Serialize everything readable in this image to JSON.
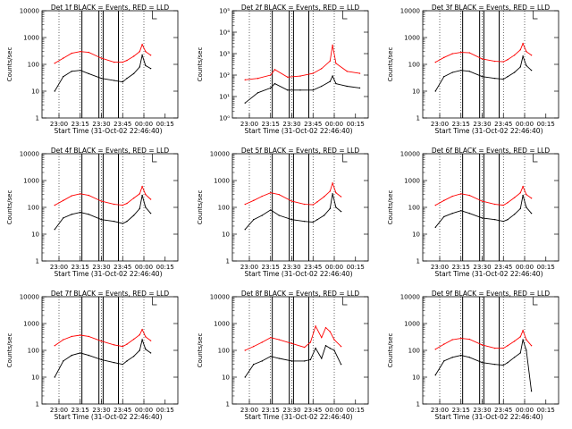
{
  "page": {
    "background": "#ffffff",
    "series_colors": {
      "events": "#000000",
      "lld": "#ff0000"
    }
  },
  "chart_data": [
    {
      "type": "line",
      "log_y": true,
      "title": "Det 1f BLACK = Events, RED = LLD",
      "xlabel": "Start Time (31-Oct-02 22:46:40)",
      "ylabel": "Counts/sec",
      "x_ticks": [
        "23:00",
        "23:15",
        "23:30",
        "23:45",
        "00:00",
        "00:15"
      ],
      "y_ticks": [
        "1",
        "10",
        "100",
        "1000",
        "10000"
      ],
      "x": [
        22.95,
        23.05,
        23.15,
        23.25,
        23.35,
        23.5,
        23.65,
        23.75,
        23.8,
        23.88,
        23.95,
        23.98,
        24.02,
        24.08
      ],
      "series": [
        {
          "values": [
            10,
            35,
            55,
            60,
            45,
            30,
            25,
            22,
            30,
            45,
            80,
            220,
            90,
            70
          ]
        },
        {
          "values": [
            110,
            170,
            260,
            300,
            280,
            170,
            120,
            120,
            140,
            200,
            300,
            550,
            300,
            220
          ]
        }
      ]
    },
    {
      "type": "line",
      "log_y": true,
      "title": "Det 2f BLACK = Events, RED = LLD",
      "xlabel": "Start Time (31-Oct-02 22:46:40)",
      "ylabel": "Counts/sec",
      "x_ticks": [
        "23:00",
        "23:15",
        "23:30",
        "23:45",
        "00:00",
        "00:15"
      ],
      "y_ticks": [
        "10⁰",
        "10¹",
        "10²",
        "10³",
        "10⁴",
        "10⁵"
      ],
      "x": [
        22.95,
        23.1,
        23.25,
        23.3,
        23.45,
        23.6,
        23.75,
        23.85,
        23.95,
        23.98,
        24.02,
        24.15,
        24.3
      ],
      "series": [
        {
          "values": [
            5,
            15,
            25,
            40,
            20,
            20,
            20,
            30,
            50,
            90,
            40,
            30,
            25
          ]
        },
        {
          "values": [
            60,
            70,
            100,
            180,
            80,
            90,
            120,
            200,
            450,
            2500,
            350,
            150,
            120
          ]
        }
      ]
    },
    {
      "type": "line",
      "log_y": true,
      "title": "Det 3f BLACK = Events, RED = LLD",
      "xlabel": "Start Time (31-Oct-02 22:46:40)",
      "ylabel": "Counts/sec",
      "x_ticks": [
        "23:00",
        "23:15",
        "23:30",
        "23:45",
        "00:00",
        "00:15"
      ],
      "y_ticks": [
        "1",
        "10",
        "100",
        "1000",
        "10000"
      ],
      "x": [
        22.95,
        23.05,
        23.15,
        23.25,
        23.35,
        23.5,
        23.65,
        23.75,
        23.8,
        23.88,
        23.95,
        23.98,
        24.02,
        24.08
      ],
      "series": [
        {
          "values": [
            10,
            35,
            50,
            60,
            55,
            35,
            30,
            28,
            35,
            50,
            80,
            200,
            90,
            60
          ]
        },
        {
          "values": [
            120,
            180,
            250,
            280,
            270,
            160,
            130,
            125,
            150,
            220,
            350,
            600,
            300,
            220
          ]
        }
      ]
    },
    {
      "type": "line",
      "log_y": true,
      "title": "Det 4f BLACK = Events, RED = LLD",
      "xlabel": "Start Time (31-Oct-02 22:46:40)",
      "ylabel": "Counts/sec",
      "x_ticks": [
        "23:00",
        "23:15",
        "23:30",
        "23:45",
        "00:00",
        "00:15"
      ],
      "y_ticks": [
        "1",
        "10",
        "100",
        "1000",
        "10000"
      ],
      "x": [
        22.95,
        23.05,
        23.15,
        23.25,
        23.35,
        23.5,
        23.65,
        23.75,
        23.8,
        23.88,
        23.95,
        23.98,
        24.02,
        24.08
      ],
      "series": [
        {
          "values": [
            15,
            40,
            55,
            65,
            55,
            35,
            30,
            25,
            30,
            50,
            90,
            280,
            100,
            60
          ]
        },
        {
          "values": [
            120,
            180,
            270,
            320,
            280,
            170,
            130,
            120,
            140,
            220,
            320,
            600,
            300,
            200
          ]
        }
      ]
    },
    {
      "type": "line",
      "log_y": true,
      "title": "Det 5f BLACK = Events, RED = LLD",
      "xlabel": "Start Time (31-Oct-02 22:46:40)",
      "ylabel": "Counts/sec",
      "x_ticks": [
        "23:00",
        "23:15",
        "23:30",
        "23:45",
        "00:00",
        "00:15"
      ],
      "y_ticks": [
        "1",
        "10",
        "100",
        "1000",
        "10000"
      ],
      "x": [
        22.95,
        23.05,
        23.15,
        23.25,
        23.35,
        23.5,
        23.65,
        23.75,
        23.8,
        23.88,
        23.95,
        23.98,
        24.02,
        24.08
      ],
      "series": [
        {
          "values": [
            15,
            35,
            50,
            80,
            50,
            35,
            30,
            28,
            35,
            50,
            90,
            320,
            100,
            70
          ]
        },
        {
          "values": [
            130,
            180,
            260,
            350,
            300,
            170,
            130,
            125,
            160,
            250,
            400,
            800,
            350,
            250
          ]
        }
      ]
    },
    {
      "type": "line",
      "log_y": true,
      "title": "Det 6f BLACK = Events, RED = LLD",
      "xlabel": "Start Time (31-Oct-02 22:46:40)",
      "ylabel": "Counts/sec",
      "x_ticks": [
        "23:00",
        "23:15",
        "23:30",
        "23:45",
        "00:00",
        "00:15"
      ],
      "y_ticks": [
        "1",
        "10",
        "100",
        "1000",
        "10000"
      ],
      "x": [
        22.95,
        23.05,
        23.15,
        23.25,
        23.35,
        23.5,
        23.65,
        23.75,
        23.8,
        23.88,
        23.95,
        23.98,
        24.02,
        24.08
      ],
      "series": [
        {
          "values": [
            18,
            45,
            60,
            75,
            60,
            40,
            35,
            30,
            35,
            55,
            90,
            280,
            100,
            60
          ]
        },
        {
          "values": [
            120,
            180,
            260,
            320,
            280,
            170,
            130,
            120,
            150,
            230,
            350,
            600,
            300,
            220
          ]
        }
      ]
    },
    {
      "type": "line",
      "log_y": true,
      "title": "Det 7f BLACK = Events, RED = LLD",
      "xlabel": "Start Time (31-Oct-02 22:46:40)",
      "ylabel": "Counts/sec",
      "x_ticks": [
        "23:00",
        "23:15",
        "23:30",
        "23:45",
        "00:00",
        "00:15"
      ],
      "y_ticks": [
        "1",
        "10",
        "100",
        "1000",
        "10000"
      ],
      "x": [
        22.95,
        23.05,
        23.15,
        23.25,
        23.35,
        23.5,
        23.65,
        23.75,
        23.8,
        23.88,
        23.95,
        23.98,
        24.02,
        24.08
      ],
      "series": [
        {
          "values": [
            10,
            40,
            65,
            80,
            65,
            45,
            35,
            30,
            40,
            60,
            100,
            250,
            110,
            80
          ]
        },
        {
          "values": [
            150,
            250,
            330,
            370,
            330,
            220,
            160,
            140,
            170,
            260,
            380,
            600,
            320,
            230
          ]
        }
      ]
    },
    {
      "type": "line",
      "log_y": true,
      "title": "Det 8f BLACK = Events, RED = LLD",
      "xlabel": "Start Time (31-Oct-02 22:46:40)",
      "ylabel": "Counts/sec",
      "x_ticks": [
        "23:00",
        "23:15",
        "23:30",
        "23:45",
        "00:00",
        "00:15"
      ],
      "y_ticks": [
        "1",
        "10",
        "100",
        "1000",
        "10000"
      ],
      "x": [
        22.95,
        23.05,
        23.15,
        23.25,
        23.35,
        23.5,
        23.65,
        23.72,
        23.78,
        23.85,
        23.9,
        23.95,
        24.0,
        24.08
      ],
      "series": [
        {
          "values": [
            10,
            30,
            40,
            60,
            50,
            40,
            40,
            45,
            120,
            50,
            150,
            120,
            100,
            30
          ]
        },
        {
          "values": [
            100,
            140,
            200,
            300,
            250,
            180,
            130,
            200,
            800,
            300,
            700,
            500,
            250,
            140
          ]
        }
      ]
    },
    {
      "type": "line",
      "log_y": true,
      "title": "Det 9f BLACK = Events, RED = LLD",
      "xlabel": "Start Time (31-Oct-02 22:46:40)",
      "ylabel": "Counts/sec",
      "x_ticks": [
        "23:00",
        "23:15",
        "23:30",
        "23:45",
        "00:00",
        "00:15"
      ],
      "y_ticks": [
        "1",
        "10",
        "100",
        "1000",
        "10000"
      ],
      "x": [
        22.95,
        23.05,
        23.15,
        23.25,
        23.35,
        23.5,
        23.65,
        23.75,
        23.8,
        23.88,
        23.95,
        23.98,
        24.02,
        24.08
      ],
      "series": [
        {
          "values": [
            12,
            40,
            55,
            65,
            55,
            35,
            30,
            28,
            35,
            55,
            80,
            250,
            100,
            3
          ]
        },
        {
          "values": [
            110,
            170,
            250,
            280,
            260,
            160,
            120,
            120,
            150,
            220,
            320,
            550,
            250,
            150
          ]
        }
      ]
    }
  ]
}
